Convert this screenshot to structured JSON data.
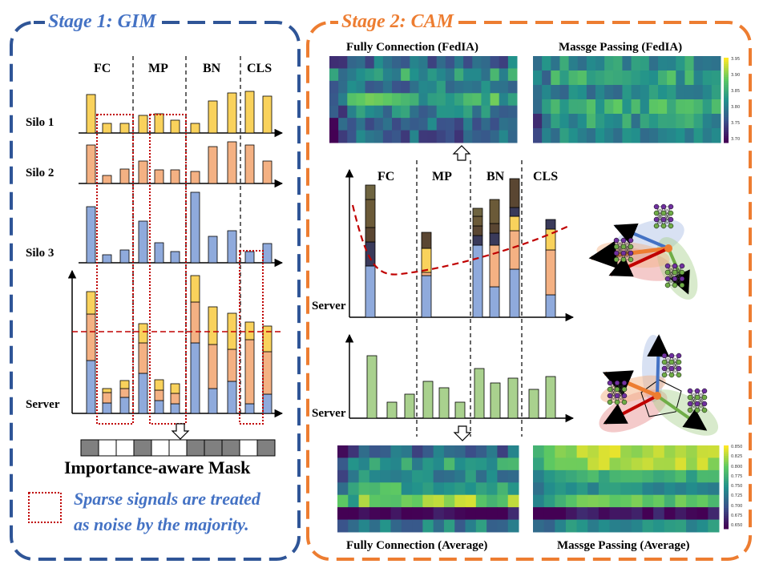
{
  "stage1": {
    "title": "Stage 1: GIM",
    "columns": [
      "FC",
      "MP",
      "BN",
      "CLS"
    ],
    "rows": [
      "Silo 1",
      "Silo 2",
      "Silo 3",
      "Server"
    ],
    "mask_title": "Importance-aware Mask",
    "mask_cells": [
      1,
      0,
      0,
      1,
      0,
      0,
      1,
      1,
      1,
      0,
      1
    ],
    "legend_line1": "Sparse signals are treated",
    "legend_line2": "as noise by the majority.",
    "colors": {
      "silo1": "#f9d25c",
      "silo2": "#f4b183",
      "silo3": "#8faadc",
      "border": "#2f5597",
      "noise_box": "#c00000"
    }
  },
  "stage2": {
    "title": "Stage 2: CAM",
    "columns": [
      "FC",
      "MP",
      "BN",
      "CLS"
    ],
    "server_label_top": "Server",
    "server_label_bottom": "Server",
    "heatmaps": {
      "top_left_title": "Fully Connection (FedIA)",
      "top_right_title": "Massge Passing (FedIA)",
      "bottom_left_title": "Fully Connection (Average)",
      "bottom_right_title": "Massge Passing (Average)"
    },
    "colorbar_top": [
      "3.95",
      "3.90",
      "3.85",
      "3.80",
      "3.75",
      "3.70"
    ],
    "colorbar_bottom": [
      "0.850",
      "0.825",
      "0.800",
      "0.775",
      "0.750",
      "0.725",
      "0.700",
      "0.675",
      "0.650"
    ],
    "colors": {
      "border": "#ed7d31",
      "title": "#ed7d31",
      "avg_bar": "#a9d18e",
      "curve": "#c00000"
    }
  }
}
